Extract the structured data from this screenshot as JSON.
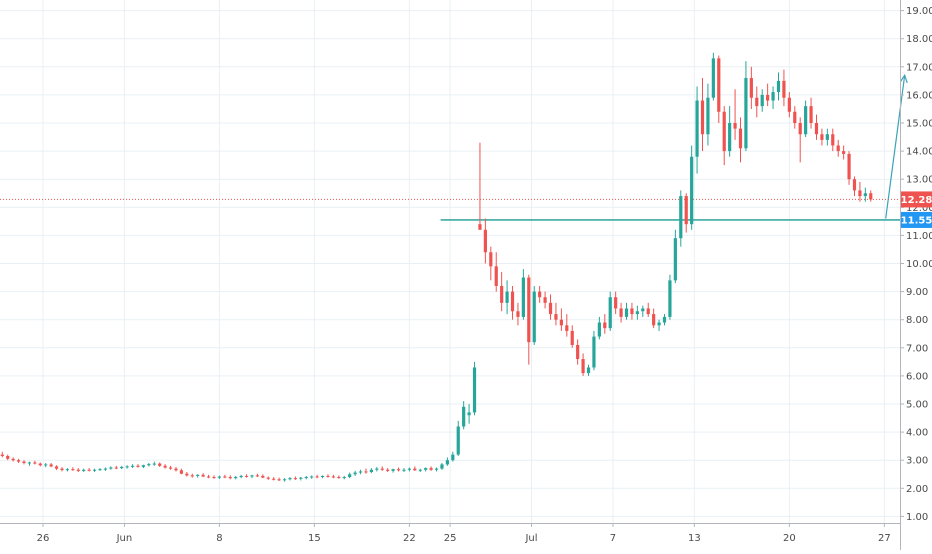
{
  "chart_data": {
    "type": "candlestick",
    "colors": {
      "up": "#26a69a",
      "down": "#ef5350",
      "grid": "#e9f0f4",
      "axis_text": "#4a4a4a",
      "support_line": "#1c9c92",
      "current_price_line": "#ef5350",
      "arrow": "#3ba3b7",
      "support_tag": "#2196f3",
      "price_tag": "#ef5350"
    },
    "ylim": [
      0.6,
      19.4
    ],
    "y_ticks": [
      "1.00",
      "2.00",
      "3.00",
      "4.00",
      "5.00",
      "6.00",
      "7.00",
      "8.00",
      "9.00",
      "10.00",
      "11.00",
      "12.00",
      "13.00",
      "14.00",
      "15.00",
      "16.00",
      "17.00",
      "18.00",
      "19.00"
    ],
    "x_ticks": [
      {
        "label": "26",
        "day": 0
      },
      {
        "label": "Jun",
        "day": 6
      },
      {
        "label": "8",
        "day": 13
      },
      {
        "label": "15",
        "day": 20
      },
      {
        "label": "22",
        "day": 27
      },
      {
        "label": "25",
        "day": 30
      },
      {
        "label": "Jul",
        "day": 36
      },
      {
        "label": "7",
        "day": 42
      },
      {
        "label": "13",
        "day": 48
      },
      {
        "label": "20",
        "day": 55
      },
      {
        "label": "27",
        "day": 62
      }
    ],
    "current_price": 12.28,
    "current_price_label": "12.28",
    "support": 11.55,
    "support_label": "11.55",
    "support_start_day": 29.3,
    "arrow": {
      "from": [
        62.1,
        11.6
      ],
      "to": [
        63.5,
        16.7
      ]
    },
    "candles": [
      [
        -3.0,
        3.2,
        3.3,
        3.1,
        3.15
      ],
      [
        -2.6,
        3.15,
        3.2,
        3.0,
        3.05
      ],
      [
        -2.2,
        3.05,
        3.1,
        2.95,
        3.0
      ],
      [
        -1.8,
        3.0,
        3.05,
        2.9,
        2.95
      ],
      [
        -1.4,
        2.95,
        3.0,
        2.85,
        2.9
      ],
      [
        -1.0,
        2.9,
        2.95,
        2.8,
        2.92
      ],
      [
        -0.6,
        2.92,
        2.98,
        2.85,
        2.88
      ],
      [
        -0.2,
        2.88,
        2.92,
        2.78,
        2.82
      ],
      [
        0.2,
        2.82,
        2.9,
        2.75,
        2.85
      ],
      [
        0.6,
        2.85,
        2.9,
        2.75,
        2.78
      ],
      [
        1.0,
        2.78,
        2.82,
        2.65,
        2.7
      ],
      [
        1.4,
        2.7,
        2.75,
        2.6,
        2.65
      ],
      [
        1.8,
        2.65,
        2.72,
        2.6,
        2.68
      ],
      [
        2.2,
        2.68,
        2.75,
        2.62,
        2.66
      ],
      [
        2.6,
        2.66,
        2.72,
        2.58,
        2.62
      ],
      [
        3.0,
        2.62,
        2.7,
        2.58,
        2.66
      ],
      [
        3.4,
        2.66,
        2.72,
        2.6,
        2.64
      ],
      [
        3.8,
        2.64,
        2.7,
        2.58,
        2.66
      ],
      [
        4.2,
        2.66,
        2.72,
        2.62,
        2.68
      ],
      [
        4.6,
        2.68,
        2.74,
        2.62,
        2.7
      ],
      [
        5.0,
        2.7,
        2.78,
        2.66,
        2.74
      ],
      [
        5.4,
        2.74,
        2.8,
        2.68,
        2.72
      ],
      [
        5.8,
        2.72,
        2.8,
        2.68,
        2.76
      ],
      [
        6.2,
        2.76,
        2.82,
        2.7,
        2.78
      ],
      [
        6.6,
        2.78,
        2.86,
        2.72,
        2.8
      ],
      [
        7.0,
        2.8,
        2.86,
        2.74,
        2.76
      ],
      [
        7.4,
        2.76,
        2.84,
        2.72,
        2.82
      ],
      [
        7.8,
        2.82,
        2.9,
        2.78,
        2.86
      ],
      [
        8.2,
        2.86,
        2.95,
        2.8,
        2.88
      ],
      [
        8.6,
        2.88,
        2.92,
        2.76,
        2.8
      ],
      [
        9.0,
        2.8,
        2.86,
        2.7,
        2.74
      ],
      [
        9.4,
        2.74,
        2.8,
        2.66,
        2.7
      ],
      [
        9.8,
        2.7,
        2.76,
        2.6,
        2.64
      ],
      [
        10.2,
        2.64,
        2.7,
        2.5,
        2.52
      ],
      [
        10.6,
        2.52,
        2.58,
        2.42,
        2.46
      ],
      [
        11.0,
        2.46,
        2.52,
        2.38,
        2.44
      ],
      [
        11.4,
        2.44,
        2.5,
        2.38,
        2.48
      ],
      [
        11.8,
        2.48,
        2.54,
        2.4,
        2.42
      ],
      [
        12.2,
        2.42,
        2.48,
        2.36,
        2.4
      ],
      [
        12.6,
        2.4,
        2.46,
        2.34,
        2.38
      ],
      [
        13.0,
        2.38,
        2.45,
        2.33,
        2.42
      ],
      [
        13.4,
        2.42,
        2.48,
        2.36,
        2.4
      ],
      [
        13.8,
        2.4,
        2.46,
        2.32,
        2.36
      ],
      [
        14.2,
        2.36,
        2.44,
        2.32,
        2.4
      ],
      [
        14.6,
        2.4,
        2.48,
        2.36,
        2.44
      ],
      [
        15.0,
        2.44,
        2.5,
        2.38,
        2.42
      ],
      [
        15.4,
        2.42,
        2.48,
        2.36,
        2.46
      ],
      [
        15.8,
        2.46,
        2.52,
        2.4,
        2.44
      ],
      [
        16.2,
        2.44,
        2.5,
        2.36,
        2.38
      ],
      [
        16.6,
        2.38,
        2.42,
        2.3,
        2.34
      ],
      [
        17.0,
        2.34,
        2.4,
        2.28,
        2.32
      ],
      [
        17.4,
        2.32,
        2.38,
        2.26,
        2.3
      ],
      [
        17.8,
        2.3,
        2.36,
        2.24,
        2.32
      ],
      [
        18.2,
        2.32,
        2.4,
        2.28,
        2.36
      ],
      [
        18.6,
        2.36,
        2.42,
        2.3,
        2.34
      ],
      [
        19.0,
        2.34,
        2.4,
        2.28,
        2.38
      ],
      [
        19.4,
        2.38,
        2.44,
        2.32,
        2.4
      ],
      [
        19.8,
        2.4,
        2.46,
        2.34,
        2.42
      ],
      [
        20.2,
        2.42,
        2.48,
        2.36,
        2.4
      ],
      [
        20.6,
        2.4,
        2.46,
        2.36,
        2.44
      ],
      [
        21.0,
        2.44,
        2.5,
        2.38,
        2.42
      ],
      [
        21.4,
        2.42,
        2.48,
        2.36,
        2.4
      ],
      [
        21.8,
        2.4,
        2.46,
        2.34,
        2.38
      ],
      [
        22.2,
        2.38,
        2.44,
        2.32,
        2.4
      ],
      [
        22.6,
        2.4,
        2.56,
        2.36,
        2.5
      ],
      [
        23.0,
        2.5,
        2.62,
        2.44,
        2.56
      ],
      [
        23.4,
        2.56,
        2.66,
        2.5,
        2.6
      ],
      [
        23.8,
        2.6,
        2.7,
        2.52,
        2.58
      ],
      [
        24.2,
        2.58,
        2.72,
        2.54,
        2.66
      ],
      [
        24.6,
        2.66,
        2.76,
        2.6,
        2.7
      ],
      [
        25.0,
        2.7,
        2.78,
        2.62,
        2.66
      ],
      [
        25.4,
        2.66,
        2.72,
        2.58,
        2.62
      ],
      [
        25.8,
        2.62,
        2.7,
        2.56,
        2.68
      ],
      [
        26.2,
        2.68,
        2.74,
        2.6,
        2.64
      ],
      [
        26.6,
        2.64,
        2.72,
        2.58,
        2.66
      ],
      [
        27.0,
        2.66,
        2.74,
        2.6,
        2.7
      ],
      [
        27.4,
        2.7,
        2.78,
        2.62,
        2.64
      ],
      [
        27.8,
        2.64,
        2.7,
        2.58,
        2.66
      ],
      [
        28.2,
        2.66,
        2.74,
        2.6,
        2.72
      ],
      [
        28.6,
        2.72,
        2.78,
        2.62,
        2.66
      ],
      [
        29.0,
        2.66,
        2.74,
        2.6,
        2.7
      ],
      [
        29.4,
        2.7,
        2.9,
        2.66,
        2.85
      ],
      [
        29.8,
        2.85,
        3.1,
        2.8,
        3.0
      ],
      [
        30.2,
        3.0,
        3.3,
        2.95,
        3.2
      ],
      [
        30.6,
        3.2,
        4.4,
        3.15,
        4.2
      ],
      [
        31.0,
        4.2,
        5.1,
        4.1,
        4.9
      ],
      [
        31.4,
        4.6,
        5.0,
        4.3,
        4.7
      ],
      [
        31.8,
        4.7,
        6.5,
        4.6,
        6.3
      ],
      [
        32.2,
        11.4,
        14.3,
        11.2,
        11.2
      ],
      [
        32.6,
        11.2,
        11.6,
        10.0,
        10.4
      ],
      [
        33.0,
        10.4,
        10.6,
        9.4,
        9.9
      ],
      [
        33.4,
        9.9,
        10.4,
        9.0,
        9.2
      ],
      [
        33.8,
        9.2,
        9.7,
        8.3,
        8.6
      ],
      [
        34.2,
        8.6,
        9.4,
        8.2,
        9.0
      ],
      [
        34.6,
        9.0,
        9.2,
        8.0,
        8.3
      ],
      [
        35.0,
        8.3,
        8.6,
        7.8,
        8.1
      ],
      [
        35.4,
        8.1,
        9.8,
        8.0,
        9.5
      ],
      [
        35.8,
        9.5,
        9.6,
        6.4,
        7.2
      ],
      [
        36.2,
        7.2,
        9.2,
        7.1,
        9.0
      ],
      [
        36.6,
        9.0,
        9.2,
        8.6,
        8.8
      ],
      [
        37.0,
        8.8,
        9.0,
        8.4,
        8.6
      ],
      [
        37.4,
        8.6,
        8.9,
        8.0,
        8.2
      ],
      [
        37.8,
        8.2,
        8.6,
        7.8,
        8.0
      ],
      [
        38.2,
        8.0,
        8.4,
        7.6,
        7.8
      ],
      [
        38.6,
        7.8,
        8.2,
        7.4,
        7.6
      ],
      [
        39.0,
        7.6,
        7.8,
        7.0,
        7.1
      ],
      [
        39.4,
        7.1,
        7.3,
        6.4,
        6.6
      ],
      [
        39.8,
        6.6,
        6.8,
        6.0,
        6.1
      ],
      [
        40.2,
        6.1,
        6.4,
        6.0,
        6.3
      ],
      [
        40.6,
        6.3,
        7.6,
        6.2,
        7.4
      ],
      [
        41.0,
        7.4,
        8.1,
        7.3,
        7.9
      ],
      [
        41.4,
        7.9,
        8.2,
        7.5,
        7.7
      ],
      [
        41.8,
        7.7,
        9.0,
        7.6,
        8.8
      ],
      [
        42.2,
        8.8,
        9.0,
        8.2,
        8.4
      ],
      [
        42.6,
        8.4,
        8.6,
        7.9,
        8.1
      ],
      [
        43.0,
        8.1,
        8.6,
        8.0,
        8.4
      ],
      [
        43.4,
        8.4,
        8.6,
        8.0,
        8.2
      ],
      [
        43.8,
        8.2,
        8.5,
        8.0,
        8.3
      ],
      [
        44.2,
        8.3,
        8.5,
        8.1,
        8.4
      ],
      [
        44.6,
        8.4,
        8.6,
        8.1,
        8.2
      ],
      [
        45.0,
        8.2,
        8.4,
        7.7,
        7.8
      ],
      [
        45.4,
        7.8,
        8.0,
        7.6,
        7.9
      ],
      [
        45.8,
        7.9,
        8.2,
        7.8,
        8.1
      ],
      [
        46.2,
        8.1,
        9.6,
        8.0,
        9.4
      ],
      [
        46.6,
        9.4,
        11.2,
        9.3,
        10.9
      ],
      [
        47.0,
        10.9,
        12.6,
        10.6,
        12.4
      ],
      [
        47.4,
        12.4,
        12.5,
        11.1,
        11.4
      ],
      [
        47.8,
        11.4,
        14.2,
        11.2,
        13.8
      ],
      [
        48.2,
        13.8,
        16.3,
        13.2,
        15.8
      ],
      [
        48.6,
        15.8,
        16.6,
        14.0,
        14.6
      ],
      [
        49.0,
        14.6,
        16.4,
        14.2,
        15.9
      ],
      [
        49.4,
        15.9,
        17.5,
        15.8,
        17.3
      ],
      [
        49.8,
        17.3,
        17.4,
        15.0,
        15.4
      ],
      [
        50.2,
        15.4,
        15.6,
        13.5,
        14.0
      ],
      [
        50.6,
        14.0,
        15.6,
        13.8,
        15.0
      ],
      [
        51.0,
        15.0,
        16.2,
        14.4,
        14.8
      ],
      [
        51.4,
        14.8,
        15.2,
        13.6,
        14.1
      ],
      [
        51.8,
        14.1,
        17.2,
        14.0,
        16.6
      ],
      [
        52.2,
        16.6,
        17.0,
        15.5,
        15.9
      ],
      [
        52.6,
        15.9,
        16.3,
        15.2,
        15.6
      ],
      [
        53.0,
        15.6,
        16.2,
        15.4,
        16.0
      ],
      [
        53.4,
        16.0,
        16.4,
        15.6,
        15.8
      ],
      [
        53.8,
        15.8,
        16.3,
        15.5,
        16.1
      ],
      [
        54.2,
        16.1,
        16.8,
        15.8,
        16.5
      ],
      [
        54.6,
        16.5,
        16.9,
        15.6,
        15.9
      ],
      [
        55.0,
        15.9,
        16.1,
        15.2,
        15.4
      ],
      [
        55.4,
        15.4,
        15.6,
        14.8,
        15.0
      ],
      [
        55.8,
        15.0,
        15.2,
        13.6,
        14.6
      ],
      [
        56.2,
        14.6,
        15.8,
        14.5,
        15.6
      ],
      [
        56.6,
        15.6,
        15.9,
        14.8,
        15.0
      ],
      [
        57.0,
        15.0,
        15.3,
        14.4,
        14.6
      ],
      [
        57.4,
        14.6,
        14.8,
        14.2,
        14.4
      ],
      [
        57.8,
        14.4,
        14.8,
        14.2,
        14.6
      ],
      [
        58.2,
        14.6,
        14.8,
        14.0,
        14.2
      ],
      [
        58.6,
        14.2,
        14.4,
        13.8,
        14.0
      ],
      [
        59.0,
        14.0,
        14.2,
        13.7,
        13.9
      ],
      [
        59.4,
        13.9,
        14.0,
        12.8,
        13.0
      ],
      [
        59.8,
        13.0,
        13.1,
        12.4,
        12.6
      ],
      [
        60.2,
        12.6,
        12.9,
        12.2,
        12.4
      ],
      [
        60.6,
        12.4,
        12.7,
        12.2,
        12.5
      ],
      [
        61.0,
        12.5,
        12.6,
        12.2,
        12.28
      ]
    ]
  }
}
